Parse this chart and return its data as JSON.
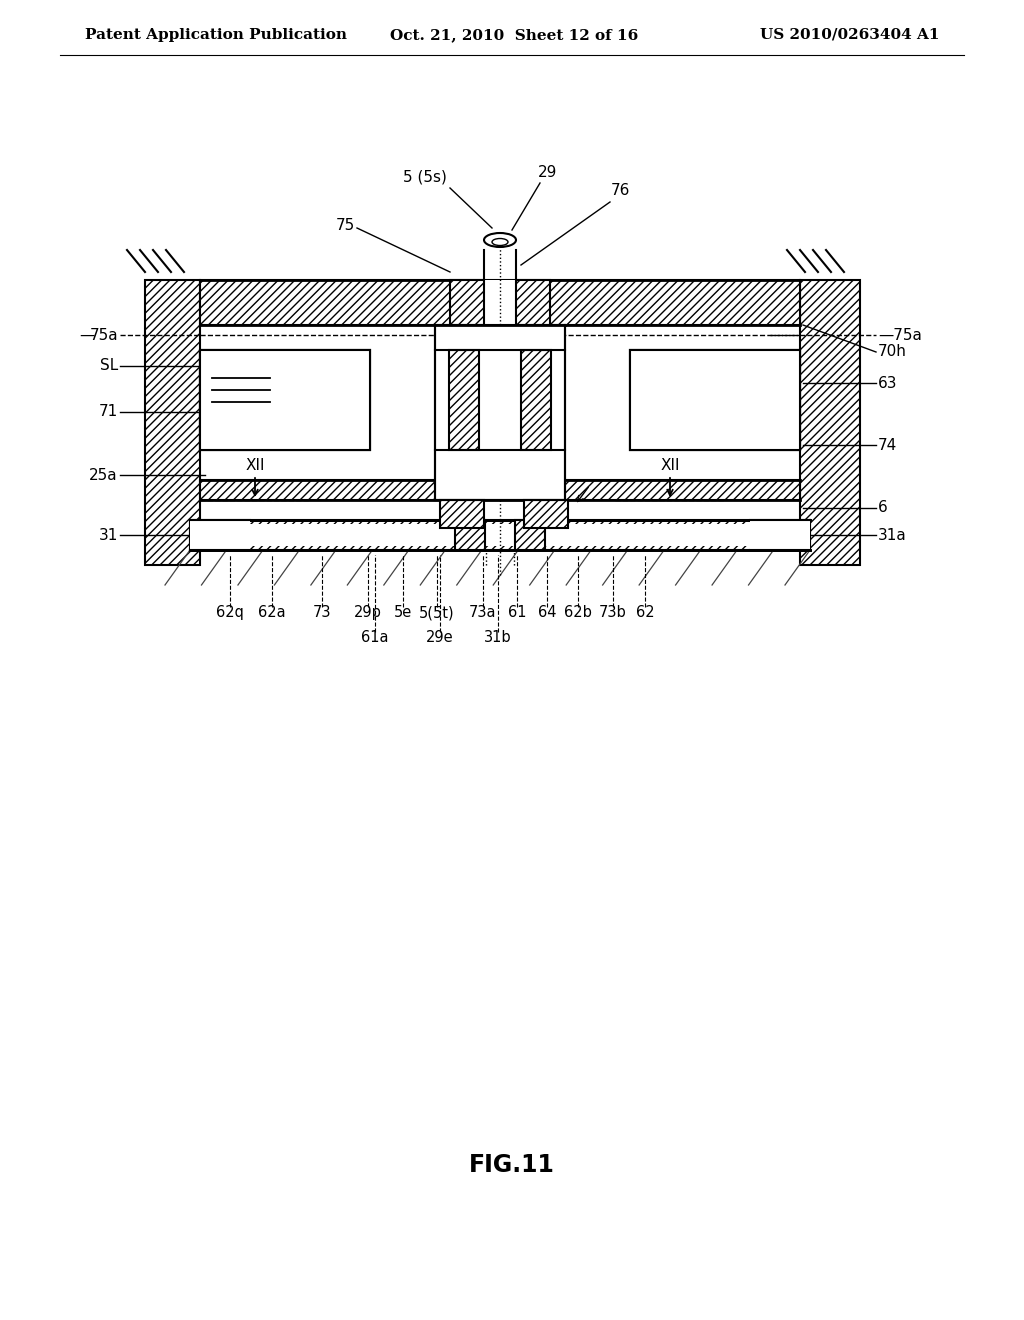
{
  "title": "FIG.11",
  "header_left": "Patent Application Publication",
  "header_center": "Oct. 21, 2010  Sheet 12 of 16",
  "header_right": "US 2010/0263404 A1",
  "bg_color": "#ffffff",
  "line_color": "#000000"
}
